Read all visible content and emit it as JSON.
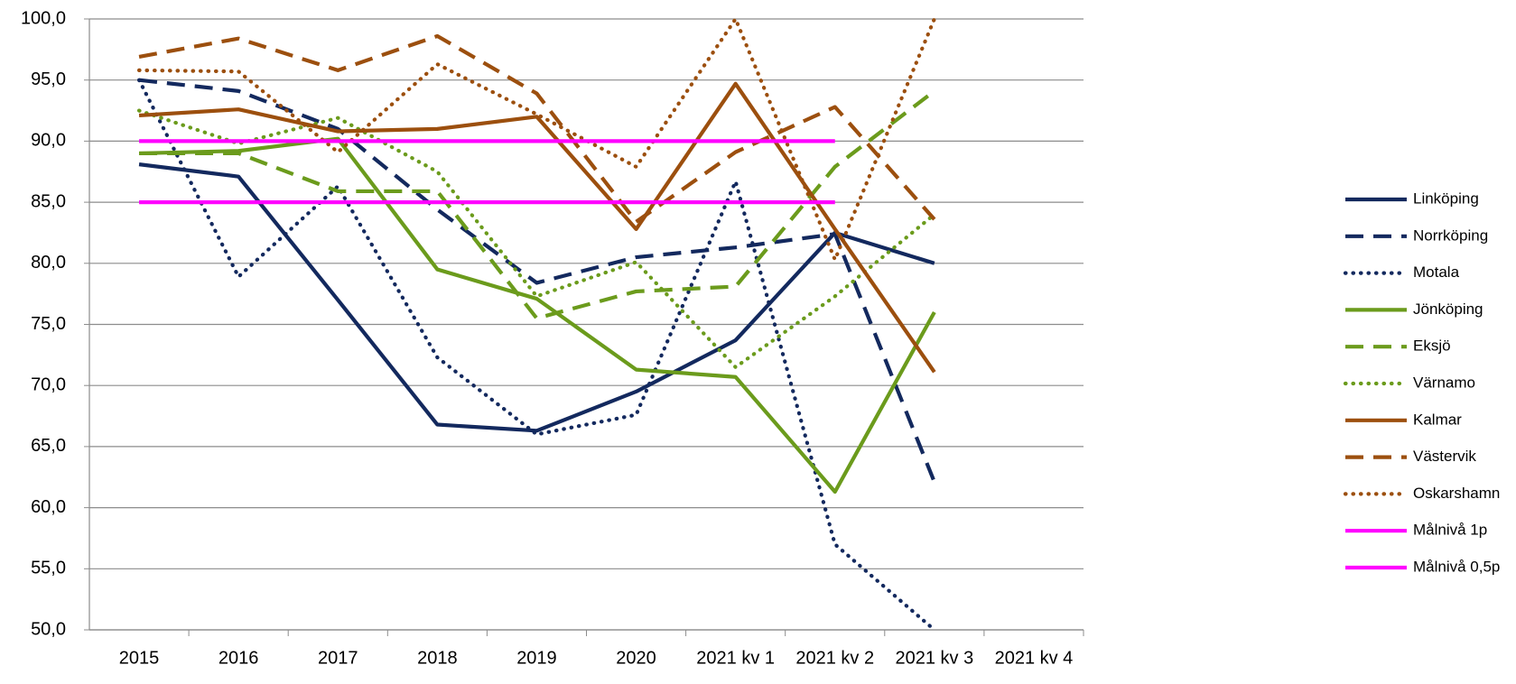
{
  "chart_data": {
    "type": "line",
    "categories": [
      "2015",
      "2016",
      "2017",
      "2018",
      "2019",
      "2020",
      "2021 kv 1",
      "2021 kv 2",
      "2021 kv 3",
      "2021 kv 4"
    ],
    "ylim": [
      50,
      100
    ],
    "yticks": [
      {
        "value": 50,
        "label": "50,0"
      },
      {
        "value": 55,
        "label": "55,0"
      },
      {
        "value": 60,
        "label": "60,0"
      },
      {
        "value": 65,
        "label": "65,0"
      },
      {
        "value": 70,
        "label": "70,0"
      },
      {
        "value": 75,
        "label": "75,0"
      },
      {
        "value": 80,
        "label": "80,0"
      },
      {
        "value": 85,
        "label": "85,0"
      },
      {
        "value": 90,
        "label": "90,0"
      },
      {
        "value": 95,
        "label": "95,0"
      },
      {
        "value": 100,
        "label": "100,0"
      }
    ],
    "grid": true,
    "legend": "right",
    "series": [
      {
        "name": "Linköping",
        "color": "#13295e",
        "style": "solid",
        "values": [
          88.1,
          87.1,
          77.0,
          66.8,
          66.3,
          69.5,
          73.7,
          82.5,
          80.0,
          null
        ]
      },
      {
        "name": "Norrköping",
        "color": "#13295e",
        "style": "dashed",
        "values": [
          95.0,
          94.1,
          91.0,
          84.4,
          78.4,
          80.5,
          81.3,
          82.4,
          62.1,
          null
        ]
      },
      {
        "name": "Motala",
        "color": "#13295e",
        "style": "dotted",
        "values": [
          95.0,
          78.9,
          86.3,
          72.3,
          66.0,
          67.6,
          86.7,
          57.0,
          50.0,
          null
        ]
      },
      {
        "name": "Jönköping",
        "color": "#6b9b1c",
        "style": "solid",
        "values": [
          89.0,
          89.2,
          90.2,
          79.5,
          77.1,
          71.3,
          70.7,
          61.3,
          76.0,
          null
        ]
      },
      {
        "name": "Eksjö",
        "color": "#6b9b1c",
        "style": "dashed",
        "values": [
          89.0,
          89.0,
          85.9,
          85.9,
          75.5,
          77.7,
          78.1,
          87.9,
          94.1,
          null
        ]
      },
      {
        "name": "Värnamo",
        "color": "#6b9b1c",
        "style": "dotted",
        "values": [
          92.5,
          89.8,
          91.9,
          87.5,
          77.3,
          80.1,
          71.5,
          77.3,
          84.0,
          null
        ]
      },
      {
        "name": "Kalmar",
        "color": "#9c4f0e",
        "style": "solid",
        "values": [
          92.1,
          92.6,
          90.8,
          91.0,
          92.0,
          82.8,
          94.7,
          82.8,
          71.1,
          null
        ]
      },
      {
        "name": "Västervik",
        "color": "#9c4f0e",
        "style": "dashed",
        "values": [
          96.9,
          98.4,
          95.8,
          98.6,
          93.9,
          83.4,
          89.1,
          92.8,
          83.6,
          null
        ]
      },
      {
        "name": "Oskarshamn",
        "color": "#9c4f0e",
        "style": "dotted",
        "values": [
          95.8,
          95.7,
          89.1,
          96.3,
          92.2,
          87.9,
          100.0,
          80.3,
          100.0,
          null
        ]
      },
      {
        "name": "Målnivå 1p",
        "color": "#ff00ff",
        "style": "solid",
        "values": [
          90,
          90,
          90,
          90,
          90,
          90,
          90,
          90,
          null,
          null
        ]
      },
      {
        "name": "Målnivå 0,5p",
        "color": "#ff00ff",
        "style": "solid",
        "values": [
          85,
          85,
          85,
          85,
          85,
          85,
          85,
          85,
          null,
          null
        ]
      }
    ]
  }
}
